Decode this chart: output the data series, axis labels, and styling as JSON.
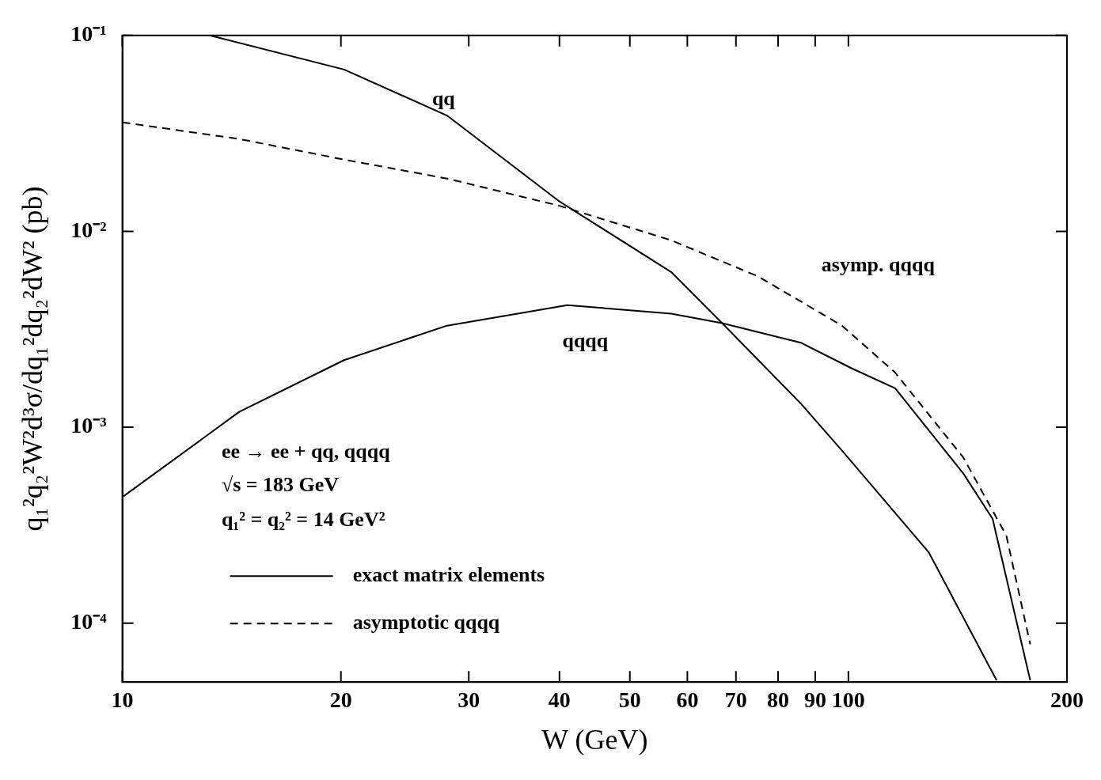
{
  "chart_data": {
    "type": "line",
    "xlabel": "W (GeV)",
    "ylabel": "q₁²q₂²W²d³σ/dq₁²dq₂²dW² (pb)",
    "log": "xy",
    "grid": false,
    "legend": "bottom left",
    "marker": "none",
    "xlim": [
      10,
      200
    ],
    "ylim": [
      5e-05,
      0.1
    ],
    "xticks": [
      10,
      20,
      30,
      40,
      50,
      60,
      70,
      80,
      90,
      100,
      200
    ],
    "yticks": [
      {
        "value": 0.1,
        "label": "10⁻¹"
      },
      {
        "value": 0.01,
        "label": "10⁻²"
      },
      {
        "value": 0.001,
        "label": "10⁻³"
      },
      {
        "value": 0.0001,
        "label": "10⁻⁴"
      }
    ],
    "series": [
      {
        "name": "exact matrix elements",
        "color": "#000000",
        "line_style": "solid",
        "x": [
          13.2,
          20.2,
          28,
          40,
          57,
          67,
          86,
          98,
          129,
          160
        ],
        "values": [
          0.1,
          0.067,
          0.039,
          0.0142,
          0.0062,
          0.0034,
          0.00132,
          0.00076,
          0.00023,
          5.1e-05
        ]
      },
      {
        "color": "#000000",
        "line_style": "solid",
        "x": [
          10,
          14.5,
          20.2,
          28,
          41,
          57,
          67,
          86,
          101,
          116,
          144,
          158,
          178
        ],
        "values": [
          0.00044,
          0.0012,
          0.0022,
          0.0033,
          0.0042,
          0.0038,
          0.0034,
          0.0027,
          0.002,
          0.00158,
          0.00058,
          0.00034,
          5.1e-05
        ]
      },
      {
        "name": "asymptotic qqqq",
        "color": "#000000",
        "line_style": "dashed",
        "x": [
          10,
          14.5,
          20,
          28,
          40,
          57,
          75,
          98,
          116,
          144,
          165,
          178
        ],
        "values": [
          0.036,
          0.0296,
          0.0234,
          0.0186,
          0.0135,
          0.009,
          0.0059,
          0.0033,
          0.0019,
          0.0007,
          0.00028,
          7.8e-05
        ]
      }
    ],
    "annotations": [
      "qq",
      "asymp. qqqq",
      "qqqq",
      "ee → ee + qq, qqqq",
      "√s = 183 GeV",
      "q₁² = q₂² = 14 GeV²"
    ]
  }
}
